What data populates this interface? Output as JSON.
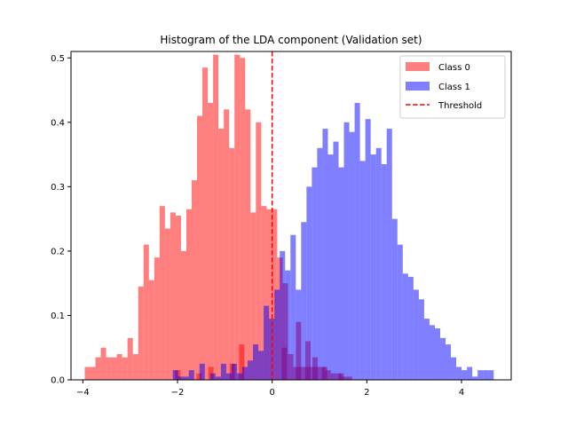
{
  "chart_data": {
    "type": "bar",
    "title": "Histogram of the LDA component (Validation set)",
    "xlabel": "",
    "ylabel": "",
    "xlim": [
      -4.25,
      5.05
    ],
    "ylim": [
      0,
      0.51
    ],
    "xticks": [
      -4,
      -2,
      0,
      2,
      4
    ],
    "xtick_labels": [
      "−4",
      "−2",
      "0",
      "2",
      "4"
    ],
    "yticks": [
      0.0,
      0.1,
      0.2,
      0.3,
      0.4,
      0.5
    ],
    "ytick_labels": [
      "0.0",
      "0.1",
      "0.2",
      "0.3",
      "0.4",
      "0.5"
    ],
    "grid": false,
    "legend_position": "top-right",
    "bin_width": 0.113,
    "series": [
      {
        "name": "Class 0",
        "color": "#ff0000",
        "alpha": 0.5,
        "x_start": -3.96,
        "values": [
          0.02,
          0.02,
          0.035,
          0.05,
          0.035,
          0.035,
          0.04,
          0.035,
          0.065,
          0.04,
          0.145,
          0.21,
          0.155,
          0.19,
          0.27,
          0.235,
          0.26,
          0.255,
          0.2,
          0.265,
          0.31,
          0.41,
          0.485,
          0.43,
          0.505,
          0.39,
          0.42,
          0.36,
          0.505,
          0.5,
          0.42,
          0.26,
          0.4,
          0.27,
          0.265,
          0.265,
          0.19,
          0.15,
          0.04,
          0.02,
          0.02,
          0.02,
          0.02,
          0.02,
          0.02,
          0.015,
          0.01,
          0.01,
          0.005,
          0.005
        ],
        "tail_points": [
          {
            "x": -2.05,
            "y": 0.015
          },
          {
            "x": -1.6,
            "y": 0.01
          },
          {
            "x": -1.35,
            "y": 0.02
          },
          {
            "x": -0.9,
            "y": 0.025
          },
          {
            "x": -0.7,
            "y": 0.055
          },
          {
            "x": 0.2,
            "y": 0.05
          },
          {
            "x": 0.5,
            "y": 0.09
          },
          {
            "x": 0.7,
            "y": 0.06
          },
          {
            "x": 0.85,
            "y": 0.035
          },
          {
            "x": 1.05,
            "y": 0.02
          },
          {
            "x": 1.4,
            "y": 0.01
          }
        ]
      },
      {
        "name": "Class 1",
        "color": "#0000ff",
        "alpha": 0.5,
        "x_start": -2.1,
        "values": [
          0.015,
          0.005,
          0.005,
          0.015,
          0.0,
          0.025,
          0.0,
          0.01,
          0.005,
          0.025,
          0.01,
          0.025,
          0.01,
          0.02,
          0.03,
          0.055,
          0.045,
          0.115,
          0.095,
          0.14,
          0.2,
          0.17,
          0.225,
          0.14,
          0.245,
          0.3,
          0.33,
          0.36,
          0.39,
          0.35,
          0.37,
          0.33,
          0.4,
          0.385,
          0.43,
          0.34,
          0.405,
          0.35,
          0.36,
          0.335,
          0.39,
          0.25,
          0.21,
          0.165,
          0.16,
          0.14,
          0.125,
          0.095,
          0.085,
          0.08,
          0.065,
          0.055,
          0.035,
          0.02,
          0.015,
          0.02,
          0.005,
          0.015,
          0.015,
          0.015
        ],
        "x_values_note": ""
      }
    ],
    "threshold": {
      "name": "Threshold",
      "x": 0.0,
      "color": "#d62728",
      "style": "dashed"
    }
  }
}
